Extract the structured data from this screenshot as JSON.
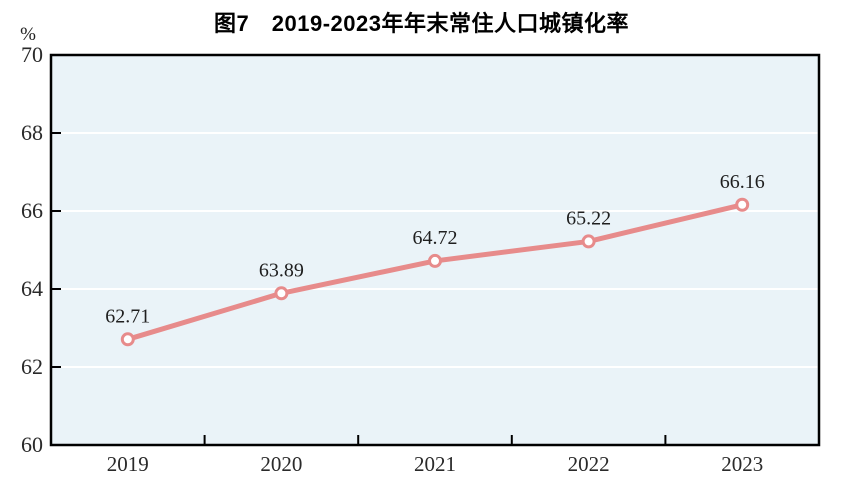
{
  "title": "图7　2019-2023年年末常住人口城镇化率",
  "chart_data": {
    "type": "line",
    "title": "图7　2019-2023年年末常住人口城镇化率",
    "categories": [
      "2019",
      "2020",
      "2021",
      "2022",
      "2023"
    ],
    "series": [
      {
        "name": "年末常住人口城镇化率",
        "values": [
          62.71,
          63.89,
          64.72,
          65.22,
          66.16
        ],
        "point_labels": [
          "62.71",
          "63.89",
          "64.72",
          "65.22",
          "66.16"
        ]
      }
    ],
    "xlabel": "",
    "ylabel": "%",
    "ylim": [
      60,
      70
    ],
    "yticks": [
      60,
      62,
      64,
      66,
      68,
      70
    ],
    "ytick_labels": [
      "60",
      "62",
      "64",
      "66",
      "68",
      "70"
    ],
    "grid": "horizontal",
    "legend_position": "none",
    "marker": "open-circle",
    "colors": {
      "line": "#e78b8b",
      "marker_fill": "#ffffff",
      "marker_stroke": "#e78b8b",
      "plot_background": "#eaf3f8",
      "plot_border": "#000000",
      "gridline": "#ffffff",
      "tick": "#000000",
      "label_text": "#1f1f1f",
      "axis_text": "#2a2a2a",
      "title_text": "#000000"
    }
  }
}
